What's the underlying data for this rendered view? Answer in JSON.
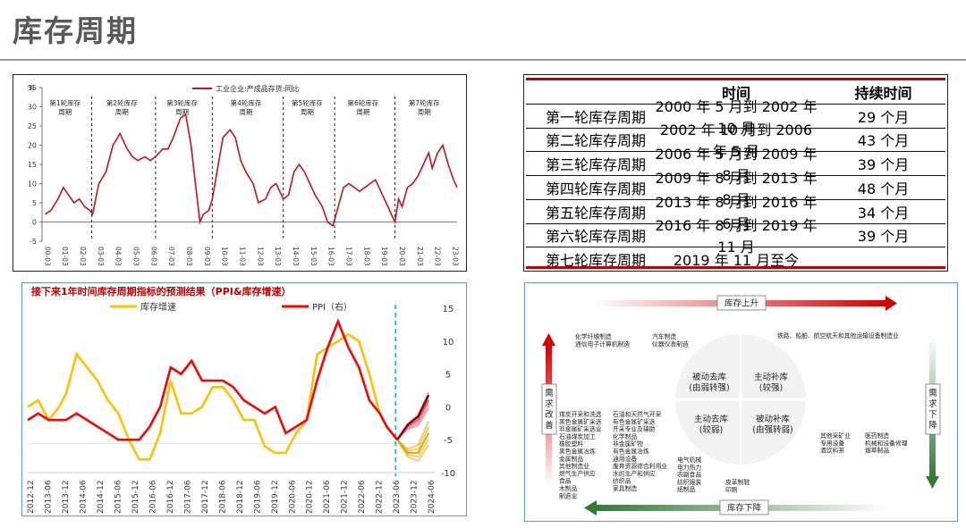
{
  "page": {
    "title": "库存周期"
  },
  "colors": {
    "accent_red": "#c00000",
    "series_red": "#c0141c",
    "series_yellow": "#ffc000",
    "forecast_dash": "#00b0f0",
    "arrow_green": "#2e7d32",
    "text_gray": "#595959"
  },
  "chart_data": [
    {
      "type": "line",
      "title": "工业企业:产成品存货:同比",
      "ylabel": "%",
      "ylim": [
        -5,
        35
      ],
      "yticks": [
        -5,
        0,
        5,
        10,
        15,
        20,
        25,
        30,
        35
      ],
      "xtick_labels": [
        "00-03",
        "01-03",
        "02-03",
        "03-03",
        "04-03",
        "05-03",
        "06-03",
        "07-03",
        "08-03",
        "09-03",
        "10-03",
        "11-03",
        "12-03",
        "13-03",
        "14-03",
        "15-03",
        "16-03",
        "17-03",
        "18-03",
        "19-03",
        "20-03",
        "21-03",
        "22-03",
        "23-03"
      ],
      "cycle_labels": [
        "第1轮库存周期",
        "第2轮库存周期",
        "第3轮库存周期",
        "第4轮库存周期",
        "第5轮库存周期",
        "第6轮库存周期",
        "第7轮库存周期"
      ],
      "cycle_boundaries_year": [
        2002.8,
        2006.4,
        2009.6,
        2013.6,
        2016.5,
        2019.9
      ],
      "series": [
        {
          "name": "工业企业:产成品存货:同比",
          "x": [
            2000.17,
            2000.5,
            2000.9,
            2001.2,
            2001.5,
            2001.8,
            2002.1,
            2002.4,
            2002.7,
            2002.85,
            2003.2,
            2003.6,
            2004.0,
            2004.4,
            2004.8,
            2005.1,
            2005.4,
            2005.8,
            2006.1,
            2006.4,
            2006.8,
            2007.1,
            2007.4,
            2007.8,
            2008.1,
            2008.4,
            2008.7,
            2008.9,
            2009.1,
            2009.4,
            2009.6,
            2009.9,
            2010.2,
            2010.6,
            2010.9,
            2011.2,
            2011.5,
            2011.9,
            2012.2,
            2012.6,
            2012.9,
            2013.2,
            2013.6,
            2013.9,
            2014.2,
            2014.5,
            2014.8,
            2015.1,
            2015.4,
            2015.8,
            2016.1,
            2016.4,
            2016.7,
            2017.0,
            2017.3,
            2017.6,
            2017.9,
            2018.2,
            2018.5,
            2018.8,
            2019.1,
            2019.4,
            2019.7,
            2019.9,
            2020.1,
            2020.3,
            2020.6,
            2020.9,
            2021.2,
            2021.5,
            2021.8,
            2022.0,
            2022.3,
            2022.6,
            2022.9,
            2023.2,
            2023.4
          ],
          "y": [
            2,
            3,
            6,
            9,
            7,
            5,
            6,
            4,
            3,
            2,
            10,
            13,
            20,
            23,
            19,
            17,
            16,
            17,
            16,
            17,
            19,
            19,
            22,
            27,
            28,
            20,
            8,
            0,
            2,
            3,
            6,
            14,
            22,
            24,
            22,
            16,
            13,
            10,
            5,
            6,
            9,
            10,
            6,
            7,
            13,
            15,
            13,
            10,
            7,
            4,
            0,
            -1,
            4,
            9,
            10,
            9,
            8,
            9,
            10,
            11,
            8,
            5,
            2,
            0,
            6,
            4,
            9,
            10,
            12,
            15,
            18,
            14,
            18,
            20,
            15,
            11,
            9
          ]
        }
      ]
    },
    {
      "type": "line",
      "title": "接下来1年时间库存周期指标的预测结果（PPI&库存增速）",
      "ylim_right": [
        -10,
        15
      ],
      "yticks_right": [
        15,
        10,
        5,
        0,
        -5,
        -10
      ],
      "xtick_labels": [
        "2012-12",
        "2013-06",
        "2013-12",
        "2014-06",
        "2014-12",
        "2015-06",
        "2015-12",
        "2016-06",
        "2016-12",
        "2017-06",
        "2017-12",
        "2018-06",
        "2018-12",
        "2019-06",
        "2019-12",
        "2020-06",
        "2020-12",
        "2021-06",
        "2021-12",
        "2022-06",
        "2022-12",
        "2023-06",
        "2023-12",
        "2024-06"
      ],
      "forecast_start": "2023-06",
      "series": [
        {
          "name": "库存增速",
          "color": "#ffc000",
          "x": [
            2012.9,
            2013.2,
            2013.5,
            2013.8,
            2014.0,
            2014.3,
            2014.6,
            2014.9,
            2015.2,
            2015.5,
            2015.8,
            2016.1,
            2016.4,
            2016.7,
            2017.0,
            2017.3,
            2017.6,
            2017.9,
            2018.2,
            2018.5,
            2018.8,
            2019.1,
            2019.4,
            2019.7,
            2020.0,
            2020.3,
            2020.6,
            2020.9,
            2021.2,
            2021.5,
            2021.8,
            2022.1,
            2022.4,
            2022.7,
            2023.0,
            2023.2,
            2023.5
          ],
          "y": [
            0,
            1,
            -2,
            0,
            2,
            8,
            6,
            4,
            1,
            -1,
            -5,
            -8,
            -8,
            -4,
            4,
            -1,
            -1,
            0,
            3,
            3,
            1,
            -2,
            -2,
            -6,
            -7,
            -7,
            -4,
            -2,
            8,
            9,
            10,
            11,
            10,
            5,
            -1,
            -3,
            -5
          ]
        },
        {
          "name": "PPI（右）",
          "color": "#ff0000",
          "x": [
            2012.9,
            2013.2,
            2013.5,
            2013.8,
            2014.0,
            2014.3,
            2014.6,
            2014.9,
            2015.2,
            2015.5,
            2015.8,
            2016.1,
            2016.4,
            2016.7,
            2017.0,
            2017.3,
            2017.6,
            2017.9,
            2018.2,
            2018.5,
            2018.8,
            2019.1,
            2019.4,
            2019.7,
            2020.0,
            2020.3,
            2020.6,
            2020.9,
            2021.2,
            2021.5,
            2021.8,
            2022.1,
            2022.4,
            2022.7,
            2023.0,
            2023.2,
            2023.5
          ],
          "y": [
            -2,
            -1,
            -2,
            -2,
            -2,
            -1,
            -2,
            -3,
            -4,
            -5,
            -5,
            -5,
            -3,
            0,
            6,
            5,
            7,
            4,
            4,
            4,
            3,
            1,
            0,
            -1,
            0,
            -4,
            -3,
            -2,
            4,
            9,
            13,
            9,
            6,
            1,
            -1,
            -3,
            -5
          ]
        }
      ],
      "forecast": {
        "x": [
          2023.5,
          2023.8,
          2024.1,
          2024.4
        ],
        "ppi": [
          -5,
          -3,
          -2,
          1
        ],
        "inventory": [
          -5,
          -7,
          -7,
          -4
        ]
      }
    }
  ],
  "cycle_table": {
    "headers": [
      "",
      "时间",
      "持续时间"
    ],
    "rows": [
      [
        "第一轮库存周期",
        "2000 年 5 月到 2002 年 10 月",
        "29 个月"
      ],
      [
        "第二轮库存周期",
        "2002 年 10 月到 2006 年 5 月",
        "43 个月"
      ],
      [
        "第三轮库存周期",
        "2006 年 5 月到 2009 年 8 月",
        "39 个月"
      ],
      [
        "第四轮库存周期",
        "2009 年 8 月到 2013 年 8 月",
        "48 个月"
      ],
      [
        "第五轮库存周期",
        "2013 年 8 月到 2016 年 6 月",
        "34 个月"
      ],
      [
        "第六轮库存周期",
        "2016 年 8 月到 2019 年 11 月",
        "39 个月"
      ],
      [
        "第七轮库存周期",
        "2019 年 11 月至今",
        ""
      ]
    ]
  },
  "quadrant": {
    "top_label": "库存上升",
    "bottom_label": "库存下降",
    "left_label": "需求改善",
    "right_label": "需求下降",
    "q_top_left": "被动去库\n(由弱转强)",
    "q_top_right": "主动补库\n(较强)",
    "q_bottom_left": "主动去库\n(较弱)",
    "q_bottom_right": "被动补库\n(由强转弱)",
    "tl_industries": [
      "化学纤维制造",
      "通信电子计算机制造",
      "汽车制造",
      "仪器仪表制造"
    ],
    "tr_industries": [
      "铁路、船舶、航空航天和其他运输设备制造业"
    ],
    "bl_col1": [
      "煤炭开采和洗选",
      "黑色金属矿采选",
      "非金属矿采选业",
      "石油煤炭加工",
      "橡胶塑料",
      "黑色金属冶炼",
      "金属制品",
      "其他制造业",
      "燃气生产供应",
      "食品",
      "木制品",
      "制造业"
    ],
    "bl_col2": [
      "石油和天然气开采",
      "有色金属矿采选",
      "开采专业及辅助",
      "化学制品",
      "非金属矿物",
      "有色金属冶炼",
      "通用设备",
      "废弃资源综合利用业",
      "水的生产和供应",
      "纺织品",
      "家具制造"
    ],
    "bl_col3": [
      "电气机械",
      "电力热力",
      "农副食品",
      "纺织服装",
      "纸制品"
    ],
    "bl_col4": [
      "皮革制鞋",
      "印刷"
    ],
    "br_col1": [
      "其他采矿业",
      "专用设备",
      "酒饮料茶"
    ],
    "br_col2": [
      "医药制造",
      "机械和设备修理",
      "烟草制品"
    ]
  }
}
